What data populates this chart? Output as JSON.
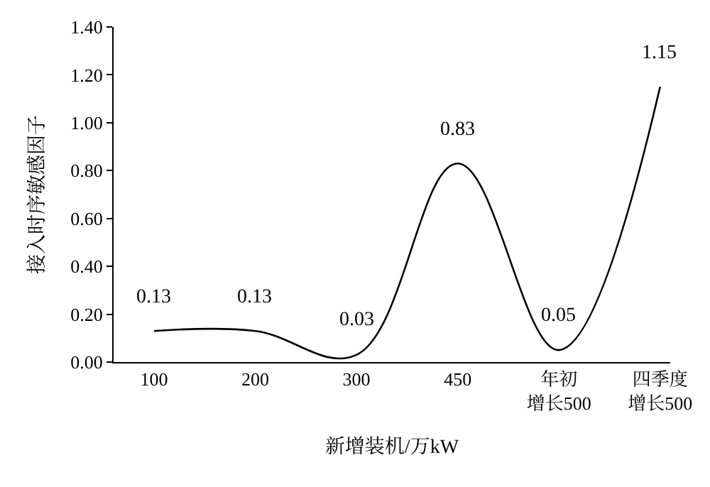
{
  "chart_data": {
    "type": "line",
    "xlabel": "新增装机/万kW",
    "ylabel": "接入时序敏感因子",
    "categories": [
      "100",
      "200",
      "300",
      "450",
      "年初增长500",
      "四季度增长500"
    ],
    "series": [
      {
        "color": "#000000",
        "values": [
          0.13,
          0.13,
          0.03,
          0.83,
          0.05,
          1.15
        ]
      }
    ],
    "ylim": [
      0,
      1.4
    ],
    "yticks": [
      {
        "value": 0,
        "label": "0.00"
      },
      {
        "value": 0.2,
        "label": "0.20"
      },
      {
        "value": 0.4,
        "label": "0.40"
      },
      {
        "value": 0.6,
        "label": "0.60"
      },
      {
        "value": 0.8,
        "label": "0.80"
      },
      {
        "value": 1.0,
        "label": "1.00"
      },
      {
        "value": 1.2,
        "label": "1.20"
      },
      {
        "value": 1.4,
        "label": "1.40"
      }
    ],
    "data_labels": true,
    "marker": "none",
    "line_style": "solid"
  }
}
